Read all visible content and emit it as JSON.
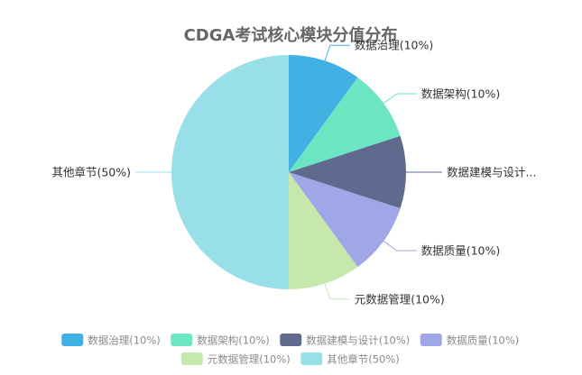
{
  "chart_data": {
    "type": "pie",
    "title": "CDGA考试核心模块分值分布",
    "slices": [
      {
        "name": "数据治理",
        "value": 10,
        "label": "数据治理(10%)",
        "display_label": "数据治理(10%)",
        "color": "#41B0E3"
      },
      {
        "name": "数据架构",
        "value": 10,
        "label": "数据架构(10%)",
        "display_label": "数据架构(10%)",
        "color": "#6CE5C2"
      },
      {
        "name": "数据建模与设计",
        "value": 10,
        "label": "数据建模与设计(10%)",
        "display_label": "数据建模与设计...",
        "color": "#5F6A8E"
      },
      {
        "name": "数据质量",
        "value": 10,
        "label": "数据质量(10%)",
        "display_label": "数据质量(10%)",
        "color": "#A0A7E6"
      },
      {
        "name": "元数据管理",
        "value": 10,
        "label": "元数据管理(10%)",
        "display_label": "元数据管理(10%)",
        "color": "#C6E8AD"
      },
      {
        "name": "其他章节",
        "value": 50,
        "label": "其他章节(50%)",
        "display_label": "其他章节(50%)",
        "color": "#99DFE8"
      }
    ],
    "legend": {
      "placement": "bottom"
    },
    "start_angle": "top-clockwise"
  }
}
